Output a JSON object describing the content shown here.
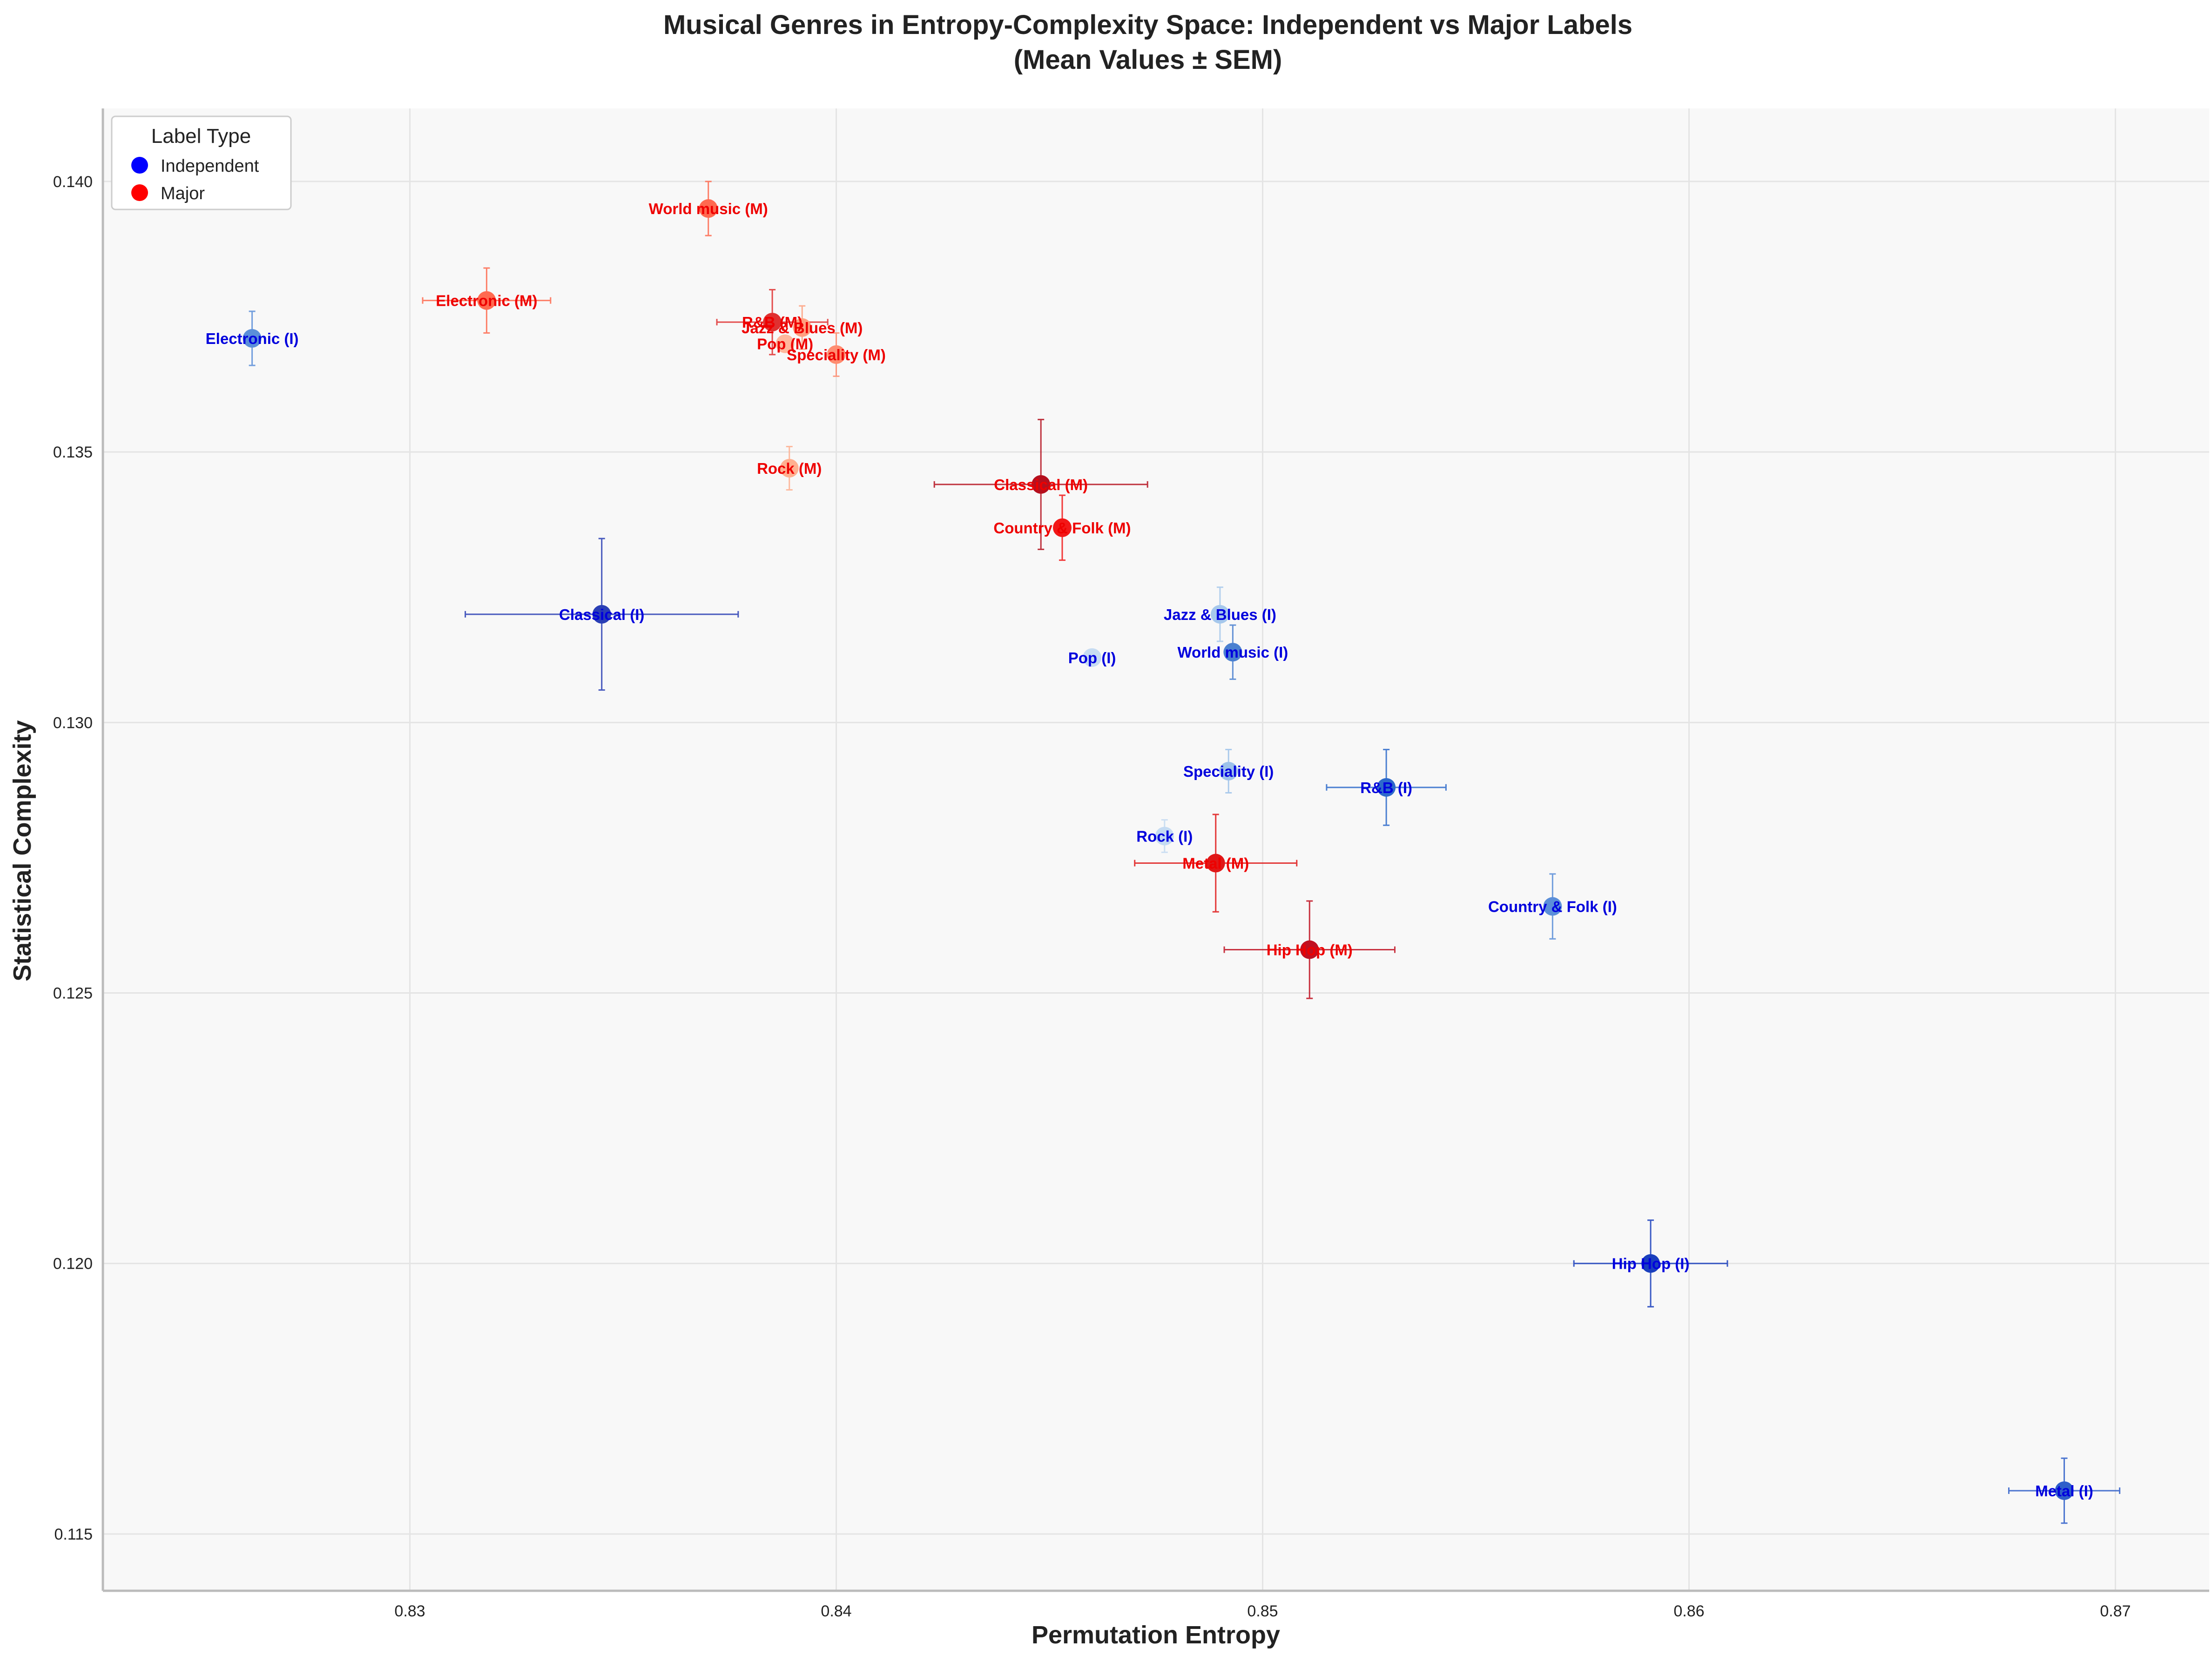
{
  "chart_data": {
    "type": "scatter",
    "title": "Musical Genres in Entropy-Complexity Space: Independent vs Major Labels",
    "subtitle": "(Mean Values ± SEM)",
    "xlabel": "Permutation Entropy",
    "ylabel": "Statistical Complexity",
    "xlim": [
      0.8228,
      0.8722
    ],
    "ylim": [
      0.11395,
      0.14135
    ],
    "xticks": [
      0.83,
      0.84,
      0.85,
      0.86,
      0.87
    ],
    "xtick_labels": [
      "0.83",
      "0.84",
      "0.85",
      "0.86",
      "0.87"
    ],
    "yticks": [
      0.115,
      0.12,
      0.125,
      0.13,
      0.135,
      0.14
    ],
    "ytick_labels": [
      "0.115",
      "0.120",
      "0.125",
      "0.130",
      "0.135",
      "0.140"
    ],
    "grid": true,
    "legend": {
      "title": "Label Type",
      "position": "top-left",
      "entries": [
        {
          "label": "Independent",
          "color": "#0000ff"
        },
        {
          "label": "Major",
          "color": "#ff0000"
        }
      ]
    },
    "series": [
      {
        "name": "Independent",
        "label_color": "#0000dd",
        "points": [
          {
            "label": "Electronic (I)",
            "x": 0.8263,
            "y": 0.1371,
            "xerr": 0.0,
            "yerr": 0.0005,
            "color": "#5b8fd9"
          },
          {
            "label": "Classical (I)",
            "x": 0.8345,
            "y": 0.132,
            "xerr": 0.0032,
            "yerr": 0.0014,
            "color": "#2a3fb5"
          },
          {
            "label": "Jazz & Blues (I)",
            "x": 0.849,
            "y": 0.132,
            "xerr": 0.0,
            "yerr": 0.0005,
            "color": "#a6c8ec"
          },
          {
            "label": "World music (I)",
            "x": 0.8493,
            "y": 0.1313,
            "xerr": 0.0,
            "yerr": 0.0005,
            "color": "#4a80d0"
          },
          {
            "label": "Pop (I)",
            "x": 0.846,
            "y": 0.1312,
            "xerr": 0.0,
            "yerr": 0.0,
            "color": "#c7dcf2"
          },
          {
            "label": "Speciality (I)",
            "x": 0.8492,
            "y": 0.1291,
            "xerr": 0.0,
            "yerr": 0.0004,
            "color": "#9dc2ea"
          },
          {
            "label": "R&B (I)",
            "x": 0.8529,
            "y": 0.1288,
            "xerr": 0.0014,
            "yerr": 0.0007,
            "color": "#2d6acb"
          },
          {
            "label": "Rock (I)",
            "x": 0.8477,
            "y": 0.1279,
            "xerr": 0.0,
            "yerr": 0.0003,
            "color": "#c5dbf2"
          },
          {
            "label": "Country & Folk (I)",
            "x": 0.8568,
            "y": 0.1266,
            "xerr": 0.0,
            "yerr": 0.0006,
            "color": "#5b8fd9"
          },
          {
            "label": "Hip Hop (I)",
            "x": 0.8591,
            "y": 0.12,
            "xerr": 0.0018,
            "yerr": 0.0008,
            "color": "#1a3fbd"
          },
          {
            "label": "Metal (I)",
            "x": 0.8688,
            "y": 0.1158,
            "xerr": 0.0013,
            "yerr": 0.0006,
            "color": "#2f5fca"
          }
        ]
      },
      {
        "name": "Major",
        "label_color": "#ee0000",
        "points": [
          {
            "label": "World music (M)",
            "x": 0.837,
            "y": 0.1395,
            "xerr": 0.0,
            "yerr": 0.0005,
            "color": "#ff6a50"
          },
          {
            "label": "Electronic (M)",
            "x": 0.8318,
            "y": 0.1378,
            "xerr": 0.0015,
            "yerr": 0.0006,
            "color": "#ff6a50"
          },
          {
            "label": "R&B (M)",
            "x": 0.8385,
            "y": 0.1374,
            "xerr": 0.0013,
            "yerr": 0.0006,
            "color": "#e03030"
          },
          {
            "label": "Jazz & Blues (M)",
            "x": 0.8392,
            "y": 0.1373,
            "xerr": 0.0,
            "yerr": 0.0004,
            "color": "#ffa080"
          },
          {
            "label": "Pop (M)",
            "x": 0.8388,
            "y": 0.137,
            "xerr": 0.0,
            "yerr": 0.0,
            "color": "#ffb79c"
          },
          {
            "label": "Speciality (M)",
            "x": 0.84,
            "y": 0.1368,
            "xerr": 0.0,
            "yerr": 0.0004,
            "color": "#ff8c70"
          },
          {
            "label": "Rock (M)",
            "x": 0.8389,
            "y": 0.1347,
            "xerr": 0.0,
            "yerr": 0.0004,
            "color": "#ffb090"
          },
          {
            "label": "Classical (M)",
            "x": 0.8448,
            "y": 0.1344,
            "xerr": 0.0025,
            "yerr": 0.0012,
            "color": "#b5101e"
          },
          {
            "label": "Country & Folk (M)",
            "x": 0.8453,
            "y": 0.1336,
            "xerr": 0.0,
            "yerr": 0.0006,
            "color": "#f21818"
          },
          {
            "label": "Metal (M)",
            "x": 0.8489,
            "y": 0.1274,
            "xerr": 0.0019,
            "yerr": 0.0009,
            "color": "#e01818"
          },
          {
            "label": "Hip Hop (M)",
            "x": 0.8511,
            "y": 0.1258,
            "xerr": 0.002,
            "yerr": 0.0009,
            "color": "#c01020"
          }
        ]
      }
    ]
  }
}
